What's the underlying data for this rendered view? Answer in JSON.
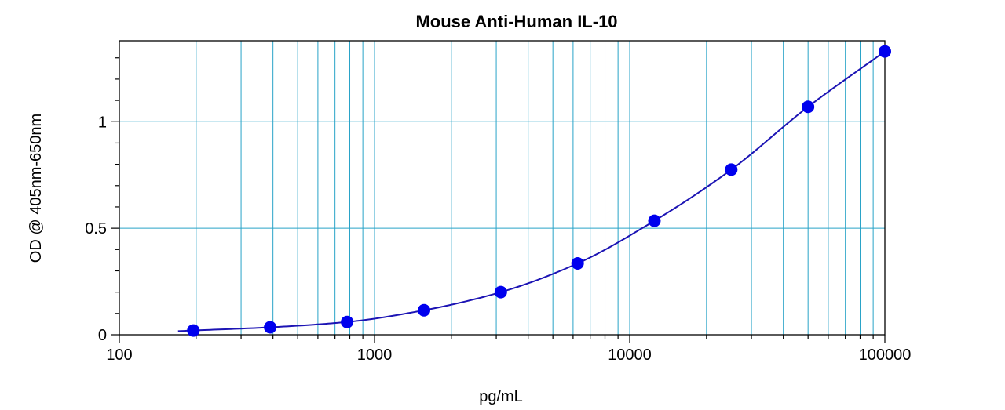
{
  "chart_data": {
    "type": "scatter",
    "title": "Mouse Anti-Human IL-10",
    "xlabel": "pg/mL",
    "ylabel": "OD @ 405nm-650nm",
    "x_scale": "log",
    "xlim": [
      100,
      100000
    ],
    "ylim": [
      0,
      1.38
    ],
    "x_ticks": [
      100,
      1000,
      10000,
      100000
    ],
    "x_tick_labels": [
      "100",
      "1000",
      "10000",
      "100000"
    ],
    "y_ticks": [
      0,
      0.5,
      1
    ],
    "y_tick_labels": [
      "0",
      "0.5",
      "1"
    ],
    "grid": true,
    "legend": "none",
    "series": [
      {
        "x": [
          195,
          390,
          781,
          1563,
          3125,
          6250,
          12500,
          25000,
          50000,
          100000
        ],
        "y": [
          0.02,
          0.035,
          0.06,
          0.115,
          0.2,
          0.335,
          0.535,
          0.775,
          1.07,
          1.33
        ]
      }
    ],
    "fit_curve": true,
    "colors": {
      "grid": "#29a3c8",
      "marker": "#0000ee",
      "curve": "#1c14b4",
      "axis": "#000000"
    }
  }
}
